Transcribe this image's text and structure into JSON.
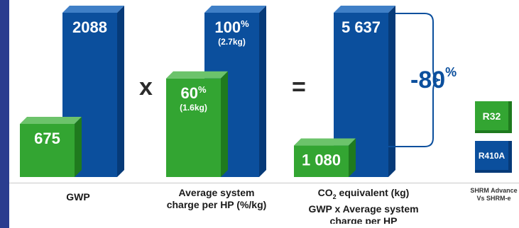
{
  "chart_data": {
    "type": "bar",
    "categories": [
      "GWP",
      "Average system charge per HP (%/kg)",
      "CO2 equivalent (kg) GWP x Average system charge per HP"
    ],
    "series": [
      {
        "name": "R32",
        "values": [
          675,
          60,
          1080
        ],
        "labels": [
          "675",
          "60%",
          "1 080"
        ],
        "sublabels": [
          "",
          "(1.6kg)",
          ""
        ]
      },
      {
        "name": "R410A",
        "values": [
          2088,
          100,
          5637
        ],
        "labels": [
          "2088",
          "100%",
          "5 637"
        ],
        "sublabels": [
          "",
          "(2.7kg)",
          ""
        ]
      }
    ],
    "operators": [
      "x",
      "="
    ],
    "reduction_label": "-80",
    "reduction_unit": "%",
    "colors": {
      "R32": "#33a532",
      "R410A": "#0b4f9d"
    }
  },
  "labels": {
    "gwp": "GWP",
    "charge_line1": "Average system",
    "charge_line2": "charge per HP (%/kg)",
    "co2_prefix": "CO",
    "co2_sub": "2",
    "co2_suffix": " equivalent (kg)",
    "co2_line2": "GWP x Average system",
    "co2_line3": "charge per HP"
  },
  "legend": {
    "r32": "R32",
    "r410a": "R410A",
    "note_line1": "SHRM Advance",
    "note_line2": "Vs SHRM-e"
  }
}
